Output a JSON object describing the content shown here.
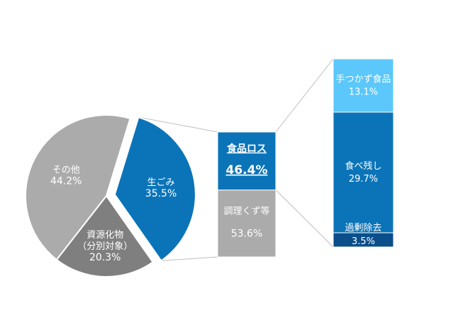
{
  "chart_data": [
    {
      "type": "pie",
      "slices": [
        {
          "label": "生ごみ",
          "value": 35.5,
          "value_label": "35.5%",
          "color": "#0B74B8",
          "exploded": true
        },
        {
          "label": "資源化物",
          "sublabel": "（分別対象）",
          "value": 20.3,
          "value_label": "20.3%",
          "color": "#7F7F7F"
        },
        {
          "label": "その他",
          "value": 44.2,
          "value_label": "44.2%",
          "color": "#ABABAB"
        }
      ]
    },
    {
      "type": "bar",
      "stacked": true,
      "orientation": "vertical",
      "segments": [
        {
          "label": "調理くず等",
          "value": 53.6,
          "value_label": "53.6%",
          "color": "#ABABAB"
        },
        {
          "label": "食品ロス",
          "value": 46.4,
          "value_label": "46.4%",
          "color": "#0B74B8",
          "emphasis": true
        }
      ]
    },
    {
      "type": "bar",
      "stacked": true,
      "orientation": "vertical",
      "segments": [
        {
          "label": "過剰除去",
          "value": 3.5,
          "value_label": "3.5%",
          "color": "#0A4E8A"
        },
        {
          "label": "食べ残し",
          "value": 29.7,
          "value_label": "29.7%",
          "color": "#0B74B8"
        },
        {
          "label": "手つかず食品",
          "value": 13.1,
          "value_label": "13.1%",
          "color": "#5BC7FA"
        }
      ]
    }
  ]
}
